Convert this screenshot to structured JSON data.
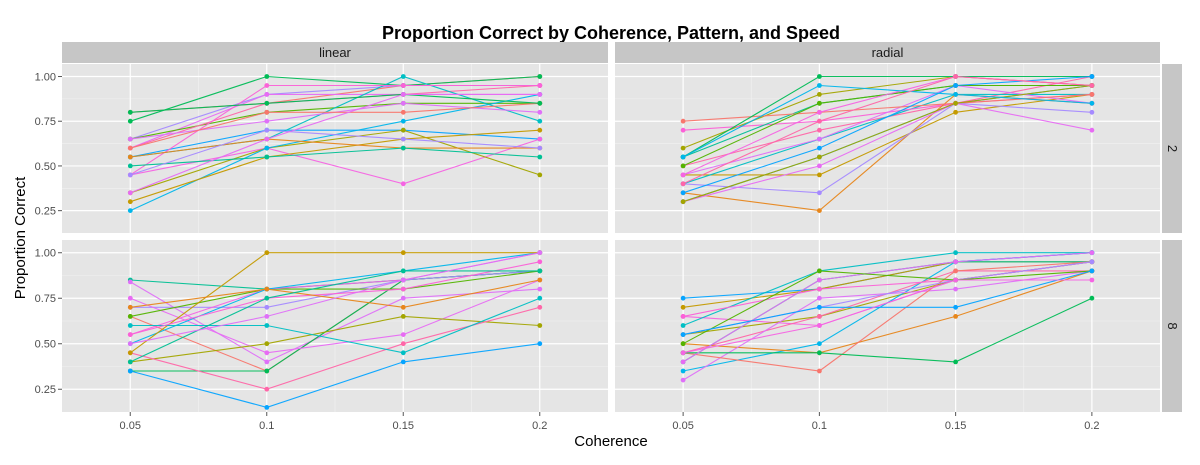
{
  "chart_data": {
    "type": "line",
    "title": "Proportion Correct by Coherence, Pattern, and Speed",
    "xlabel": "Coherence",
    "ylabel": "Proportion Correct",
    "x": [
      0.05,
      0.1,
      0.15,
      0.2
    ],
    "x_tick_labels": [
      "0.05",
      "0.1",
      "0.15",
      "0.2"
    ],
    "y_ticks": [
      0.25,
      0.5,
      0.75,
      1.0
    ],
    "y_tick_labels": [
      "0.25",
      "0.50",
      "0.75",
      "1.00"
    ],
    "xlim": [
      0.025,
      0.225
    ],
    "ylim": [
      0.125,
      1.07
    ],
    "grid": true,
    "legend": "none",
    "column_facets": [
      "linear",
      "radial"
    ],
    "row_facets": [
      "2",
      "8"
    ],
    "palette": [
      "#F8766D",
      "#E7861B",
      "#C49A00",
      "#A3A500",
      "#53B400",
      "#00BC56",
      "#00C094",
      "#00BFC4",
      "#00B6EB",
      "#06A4FF",
      "#A58AFF",
      "#DF70F8",
      "#FB61D7",
      "#FF66A8",
      "#F564E3",
      "#E76BF3"
    ],
    "panels": [
      {
        "column": "linear",
        "row": "2",
        "series": [
          {
            "values": [
              0.8,
              0.85,
              0.95,
              1.0
            ]
          },
          {
            "values": [
              0.75,
              1.0,
              0.95,
              1.0
            ]
          },
          {
            "values": [
              0.65,
              0.9,
              0.95,
              0.95
            ]
          },
          {
            "values": [
              0.6,
              0.9,
              0.9,
              0.9
            ]
          },
          {
            "values": [
              0.65,
              0.8,
              0.85,
              0.85
            ]
          },
          {
            "values": [
              0.55,
              0.7,
              0.7,
              0.65
            ]
          },
          {
            "values": [
              0.45,
              0.6,
              0.4,
              0.65
            ]
          },
          {
            "values": [
              0.35,
              0.6,
              0.7,
              0.45
            ]
          },
          {
            "values": [
              0.25,
              0.6,
              0.75,
              0.9
            ]
          },
          {
            "values": [
              0.6,
              0.85,
              0.9,
              0.95
            ]
          },
          {
            "values": [
              0.3,
              0.55,
              0.65,
              0.7
            ]
          },
          {
            "values": [
              0.55,
              0.65,
              1.0,
              0.75
            ]
          },
          {
            "values": [
              0.45,
              0.95,
              0.95,
              0.95
            ]
          },
          {
            "values": [
              0.55,
              0.65,
              0.6,
              0.6
            ]
          },
          {
            "values": [
              0.5,
              0.55,
              0.6,
              0.55
            ]
          },
          {
            "values": [
              0.65,
              0.75,
              0.85,
              0.8
            ]
          },
          {
            "values": [
              0.6,
              0.8,
              0.8,
              0.85
            ]
          },
          {
            "values": [
              0.8,
              0.85,
              0.9,
              0.85
            ]
          },
          {
            "values": [
              0.45,
              0.7,
              0.65,
              0.6
            ]
          },
          {
            "values": [
              0.35,
              0.65,
              0.9,
              0.9
            ]
          }
        ]
      },
      {
        "column": "radial",
        "row": "2",
        "series": [
          {
            "values": [
              0.6,
              0.9,
              1.0,
              0.95
            ]
          },
          {
            "values": [
              0.3,
              0.55,
              0.85,
              0.95
            ]
          },
          {
            "values": [
              0.5,
              0.7,
              0.85,
              1.0
            ]
          },
          {
            "values": [
              0.45,
              0.45,
              0.8,
              0.9
            ]
          },
          {
            "values": [
              0.4,
              0.65,
              0.9,
              0.9
            ]
          },
          {
            "values": [
              0.7,
              0.75,
              0.85,
              0.9
            ]
          },
          {
            "values": [
              0.35,
              0.25,
              0.9,
              0.85
            ]
          },
          {
            "values": [
              0.55,
              0.85,
              0.95,
              0.95
            ]
          },
          {
            "values": [
              0.45,
              0.65,
              0.95,
              0.85
            ]
          },
          {
            "values": [
              0.75,
              0.8,
              0.85,
              0.9
            ]
          },
          {
            "values": [
              0.55,
              1.0,
              1.0,
              1.0
            ]
          },
          {
            "values": [
              0.4,
              0.35,
              0.85,
              0.8
            ]
          },
          {
            "values": [
              0.3,
              0.5,
              0.85,
              0.7
            ]
          },
          {
            "values": [
              0.5,
              0.85,
              0.95,
              0.95
            ]
          },
          {
            "values": [
              0.35,
              0.6,
              0.95,
              1.0
            ]
          },
          {
            "values": [
              0.45,
              0.8,
              1.0,
              0.95
            ]
          },
          {
            "values": [
              0.3,
              0.55,
              0.85,
              0.95
            ]
          },
          {
            "values": [
              0.55,
              0.95,
              0.9,
              0.85
            ]
          },
          {
            "values": [
              0.4,
              0.75,
              1.0,
              0.95
            ]
          }
        ]
      },
      {
        "column": "linear",
        "row": "8",
        "series": [
          {
            "values": [
              0.85,
              0.8,
              0.85,
              0.9
            ]
          },
          {
            "values": [
              0.84,
              0.4,
              0.75,
              0.8
            ]
          },
          {
            "values": [
              0.65,
              0.35,
              0.85,
              0.9
            ]
          },
          {
            "values": [
              0.35,
              0.35,
              0.85,
              0.9
            ]
          },
          {
            "values": [
              0.7,
              0.7,
              0.85,
              0.9
            ]
          },
          {
            "values": [
              0.75,
              0.45,
              0.55,
              0.85
            ]
          },
          {
            "values": [
              0.65,
              0.8,
              0.8,
              0.9
            ]
          },
          {
            "values": [
              0.35,
              0.15,
              0.4,
              0.5
            ]
          },
          {
            "values": [
              0.55,
              0.8,
              0.85,
              1.0
            ]
          },
          {
            "values": [
              0.4,
              0.5,
              0.65,
              0.6
            ]
          },
          {
            "values": [
              0.5,
              0.8,
              0.9,
              1.0
            ]
          },
          {
            "values": [
              0.45,
              0.25,
              0.5,
              0.7
            ]
          },
          {
            "values": [
              0.45,
              1.0,
              1.0,
              1.0
            ]
          },
          {
            "values": [
              0.6,
              0.6,
              0.45,
              0.75
            ]
          },
          {
            "values": [
              0.55,
              0.75,
              0.8,
              0.95
            ]
          },
          {
            "values": [
              0.7,
              0.8,
              0.7,
              0.85
            ]
          },
          {
            "values": [
              0.4,
              0.75,
              0.9,
              0.9
            ]
          },
          {
            "values": [
              0.5,
              0.65,
              0.85,
              1.0
            ]
          }
        ]
      },
      {
        "column": "radial",
        "row": "8",
        "series": [
          {
            "values": [
              0.75,
              0.8,
              0.95,
              1.0
            ]
          },
          {
            "values": [
              0.65,
              0.6,
              0.85,
              0.95
            ]
          },
          {
            "values": [
              0.55,
              0.65,
              0.85,
              0.95
            ]
          },
          {
            "values": [
              0.35,
              0.5,
              0.95,
              1.0
            ]
          },
          {
            "values": [
              0.45,
              0.65,
              0.9,
              0.9
            ]
          },
          {
            "values": [
              0.7,
              0.8,
              0.95,
              0.95
            ]
          },
          {
            "values": [
              0.6,
              0.9,
              1.0,
              1.0
            ]
          },
          {
            "values": [
              0.65,
              0.8,
              0.85,
              0.95
            ]
          },
          {
            "values": [
              0.5,
              0.45,
              0.65,
              0.9
            ]
          },
          {
            "values": [
              0.4,
              0.85,
              0.95,
              0.95
            ]
          },
          {
            "values": [
              0.3,
              0.75,
              0.8,
              0.9
            ]
          },
          {
            "values": [
              0.45,
              0.35,
              0.9,
              0.95
            ]
          },
          {
            "values": [
              0.45,
              0.45,
              0.4,
              0.75
            ]
          },
          {
            "values": [
              0.55,
              0.7,
              0.85,
              0.95
            ]
          },
          {
            "values": [
              0.4,
              0.85,
              0.95,
              1.0
            ]
          },
          {
            "values": [
              0.5,
              0.9,
              0.85,
              0.9
            ]
          },
          {
            "values": [
              0.55,
              0.7,
              0.7,
              0.9
            ]
          },
          {
            "values": [
              0.45,
              0.6,
              0.85,
              0.85
            ]
          }
        ]
      }
    ]
  }
}
